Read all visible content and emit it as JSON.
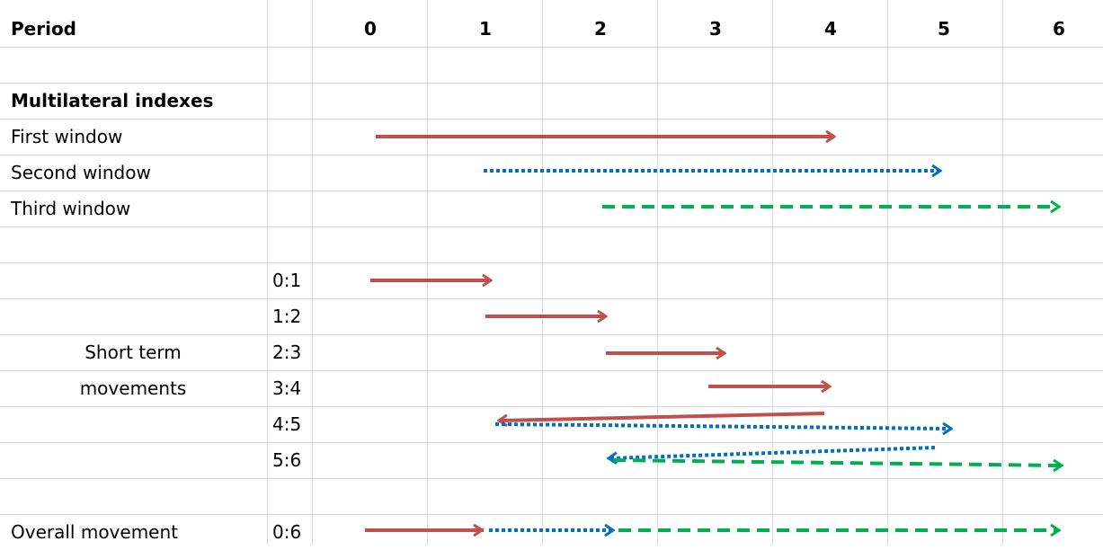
{
  "header": {
    "title": "Period",
    "periods": [
      0,
      1,
      2,
      3,
      4,
      5,
      6
    ]
  },
  "multilateral": {
    "title": "Multilateral indexes",
    "windows": [
      "First window",
      "Second window",
      "Third window"
    ]
  },
  "short_term": {
    "label": "Short term movements",
    "movements": [
      "0:1",
      "1:2",
      "2:3",
      "3:4",
      "4:5",
      "5:6"
    ]
  },
  "overall": {
    "label": "Overall movement",
    "movement": "0:6"
  }
}
